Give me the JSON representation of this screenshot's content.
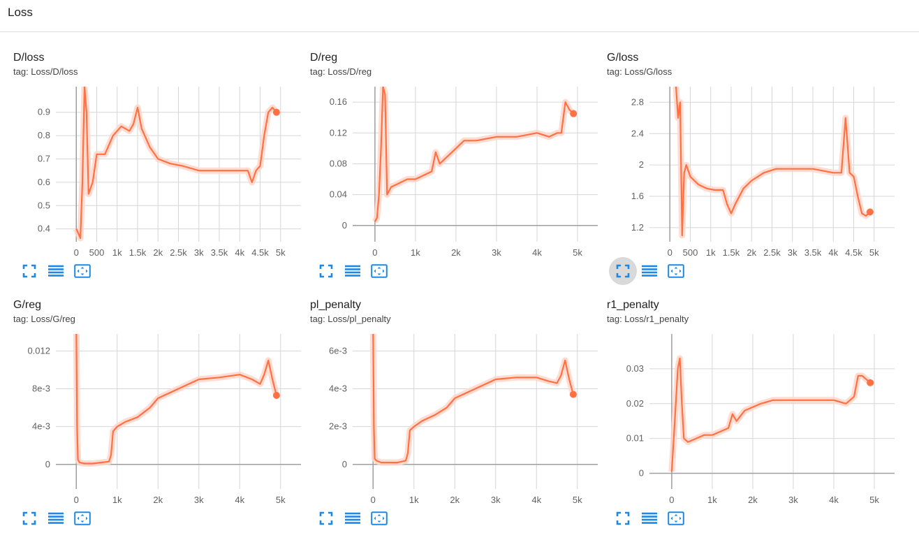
{
  "section": {
    "title": "Loss"
  },
  "colors": {
    "line": "#ff7043",
    "smooth_bg": "#ffd6c9",
    "grid": "#d6d6d6",
    "axis": "#9e9e9e",
    "icon": "#1e88e5"
  },
  "icons": [
    "fit-domain-icon",
    "toggle-log-icon",
    "expand-icon"
  ],
  "cards": [
    {
      "title": "D/loss",
      "tag": "tag: Loss/D/loss",
      "active_fullscreen": false
    },
    {
      "title": "D/reg",
      "tag": "tag: Loss/D/reg",
      "active_fullscreen": false
    },
    {
      "title": "G/loss",
      "tag": "tag: Loss/G/loss",
      "active_fullscreen": true
    },
    {
      "title": "G/reg",
      "tag": "tag: Loss/G/reg",
      "active_fullscreen": false
    },
    {
      "title": "pl_penalty",
      "tag": "tag: Loss/pl_penalty",
      "active_fullscreen": false
    },
    {
      "title": "r1_penalty",
      "tag": "tag: Loss/r1_penalty",
      "active_fullscreen": false
    }
  ],
  "chart_data": [
    {
      "type": "line",
      "title": "D/loss",
      "xlim": [
        -500,
        5500
      ],
      "ylim": [
        0.345,
        1.01
      ],
      "xticks": [
        0,
        500,
        1000,
        1500,
        2000,
        2500,
        3000,
        3500,
        4000,
        4500,
        5000
      ],
      "xtick_labels": [
        "0",
        "500",
        "1k",
        "1.5k",
        "2k",
        "2.5k",
        "3k",
        "3.5k",
        "4k",
        "4.5k",
        "5k"
      ],
      "yticks": [
        0.4,
        0.5,
        0.6,
        0.7,
        0.8,
        0.9
      ],
      "ytick_labels": [
        "0.4",
        "0.5",
        "0.6",
        "0.7",
        "0.8",
        "0.9"
      ],
      "series": [
        {
          "x": [
            0,
            50,
            100,
            150,
            200,
            250,
            300,
            400,
            500,
            700,
            900,
            1100,
            1300,
            1400,
            1500,
            1600,
            1800,
            2000,
            2300,
            2600,
            3000,
            3500,
            4000,
            4200,
            4300,
            4400,
            4500,
            4600,
            4700,
            4800,
            4900
          ],
          "y": [
            0.4,
            0.38,
            0.36,
            0.6,
            1.01,
            0.9,
            0.55,
            0.6,
            0.72,
            0.72,
            0.8,
            0.84,
            0.82,
            0.85,
            0.92,
            0.83,
            0.75,
            0.7,
            0.68,
            0.67,
            0.65,
            0.65,
            0.65,
            0.65,
            0.6,
            0.65,
            0.67,
            0.8,
            0.9,
            0.92,
            0.9
          ]
        }
      ]
    },
    {
      "type": "line",
      "title": "D/reg",
      "xlim": [
        -550,
        5500
      ],
      "ylim": [
        -0.021,
        0.18
      ],
      "xticks": [
        0,
        1000,
        2000,
        3000,
        4000,
        5000
      ],
      "xtick_labels": [
        "0",
        "1k",
        "2k",
        "3k",
        "4k",
        "5k"
      ],
      "yticks": [
        0,
        0.04,
        0.08,
        0.12,
        0.16
      ],
      "ytick_labels": [
        "0",
        "0.04",
        "0.08",
        "0.12",
        "0.16"
      ],
      "series": [
        {
          "x": [
            0,
            50,
            100,
            150,
            200,
            250,
            300,
            400,
            600,
            800,
            1000,
            1200,
            1400,
            1500,
            1600,
            1800,
            2000,
            2200,
            2500,
            3000,
            3500,
            4000,
            4300,
            4500,
            4600,
            4700,
            4800,
            4900
          ],
          "y": [
            0.005,
            0.01,
            0.04,
            0.1,
            0.18,
            0.17,
            0.04,
            0.05,
            0.055,
            0.06,
            0.06,
            0.065,
            0.07,
            0.095,
            0.08,
            0.09,
            0.1,
            0.11,
            0.11,
            0.115,
            0.115,
            0.12,
            0.115,
            0.12,
            0.12,
            0.16,
            0.15,
            0.145
          ]
        }
      ]
    },
    {
      "type": "line",
      "title": "G/loss",
      "xlim": [
        -500,
        5500
      ],
      "ylim": [
        1.02,
        3.0
      ],
      "xticks": [
        0,
        500,
        1000,
        1500,
        2000,
        2500,
        3000,
        3500,
        4000,
        4500,
        5000
      ],
      "xtick_labels": [
        "0",
        "500",
        "1k",
        "1.5k",
        "2k",
        "2.5k",
        "3k",
        "3.5k",
        "4k",
        "4.5k",
        "5k"
      ],
      "yticks": [
        1.2,
        1.6,
        2.0,
        2.4,
        2.8
      ],
      "ytick_labels": [
        "1.2",
        "1.6",
        "2",
        "2.4",
        "2.8"
      ],
      "series": [
        {
          "x": [
            150,
            200,
            250,
            300,
            350,
            400,
            500,
            700,
            900,
            1100,
            1300,
            1400,
            1500,
            1600,
            1800,
            2000,
            2300,
            2600,
            3000,
            3500,
            4000,
            4200,
            4300,
            4400,
            4500,
            4600,
            4700,
            4800,
            4900
          ],
          "y": [
            3.0,
            2.6,
            2.8,
            1.1,
            1.9,
            2.0,
            1.85,
            1.75,
            1.7,
            1.68,
            1.68,
            1.5,
            1.38,
            1.5,
            1.7,
            1.8,
            1.9,
            1.95,
            1.95,
            1.95,
            1.9,
            1.9,
            2.6,
            1.9,
            1.85,
            1.6,
            1.38,
            1.35,
            1.4
          ]
        }
      ]
    },
    {
      "type": "line",
      "title": "G/reg",
      "xlim": [
        -500,
        5500
      ],
      "ylim": [
        -0.0026,
        0.0138
      ],
      "xticks": [
        0,
        1000,
        2000,
        3000,
        4000,
        5000
      ],
      "xtick_labels": [
        "0",
        "1k",
        "2k",
        "3k",
        "4k",
        "5k"
      ],
      "yticks": [
        0,
        0.004,
        0.008,
        0.012
      ],
      "ytick_labels": [
        "0",
        "4e-3",
        "8e-3",
        "0.012"
      ],
      "series": [
        {
          "x": [
            0,
            20,
            40,
            80,
            200,
            400,
            600,
            800,
            850,
            900,
            1000,
            1200,
            1500,
            1800,
            2000,
            2500,
            3000,
            3500,
            4000,
            4300,
            4500,
            4600,
            4700,
            4800,
            4900
          ],
          "y": [
            0.0138,
            0.004,
            0.0005,
            0.0002,
            0.0001,
            0.0001,
            0.0002,
            0.0003,
            0.001,
            0.0035,
            0.004,
            0.0045,
            0.005,
            0.006,
            0.007,
            0.008,
            0.009,
            0.0092,
            0.0095,
            0.009,
            0.0085,
            0.0095,
            0.011,
            0.009,
            0.0073
          ]
        }
      ]
    },
    {
      "type": "line",
      "title": "pl_penalty",
      "xlim": [
        -500,
        5500
      ],
      "ylim": [
        -0.0013,
        0.0069
      ],
      "xticks": [
        0,
        1000,
        2000,
        3000,
        4000,
        5000
      ],
      "xtick_labels": [
        "0",
        "1k",
        "2k",
        "3k",
        "4k",
        "5k"
      ],
      "yticks": [
        0,
        0.002,
        0.004,
        0.006
      ],
      "ytick_labels": [
        "0",
        "2e-3",
        "4e-3",
        "6e-3"
      ],
      "series": [
        {
          "x": [
            0,
            20,
            40,
            80,
            200,
            400,
            600,
            800,
            850,
            900,
            1000,
            1200,
            1500,
            1800,
            2000,
            2500,
            3000,
            3500,
            4000,
            4300,
            4500,
            4600,
            4700,
            4800,
            4900
          ],
          "y": [
            0.0069,
            0.002,
            0.0003,
            0.0002,
            0.0001,
            0.0001,
            0.0001,
            0.0002,
            0.0006,
            0.0018,
            0.002,
            0.0023,
            0.0026,
            0.003,
            0.0035,
            0.004,
            0.0045,
            0.0046,
            0.0046,
            0.0044,
            0.0043,
            0.0047,
            0.0055,
            0.0045,
            0.0037
          ]
        }
      ]
    },
    {
      "type": "line",
      "title": "r1_penalty",
      "xlim": [
        -550,
        5500
      ],
      "ylim": [
        -0.0045,
        0.04
      ],
      "xticks": [
        0,
        1000,
        2000,
        3000,
        4000,
        5000
      ],
      "xtick_labels": [
        "0",
        "1k",
        "2k",
        "3k",
        "4k",
        "5k"
      ],
      "yticks": [
        0,
        0.01,
        0.02,
        0.03
      ],
      "ytick_labels": [
        "0",
        "0.01",
        "0.02",
        "0.03"
      ],
      "series": [
        {
          "x": [
            0,
            50,
            100,
            150,
            200,
            250,
            300,
            400,
            600,
            800,
            1000,
            1200,
            1400,
            1500,
            1600,
            1800,
            2000,
            2200,
            2500,
            3000,
            3500,
            4000,
            4300,
            4500,
            4600,
            4700,
            4800,
            4900
          ],
          "y": [
            0.0005,
            0.01,
            0.02,
            0.03,
            0.033,
            0.02,
            0.01,
            0.009,
            0.01,
            0.011,
            0.011,
            0.012,
            0.013,
            0.017,
            0.015,
            0.018,
            0.019,
            0.02,
            0.021,
            0.021,
            0.021,
            0.021,
            0.02,
            0.022,
            0.028,
            0.028,
            0.027,
            0.026
          ]
        }
      ]
    }
  ]
}
